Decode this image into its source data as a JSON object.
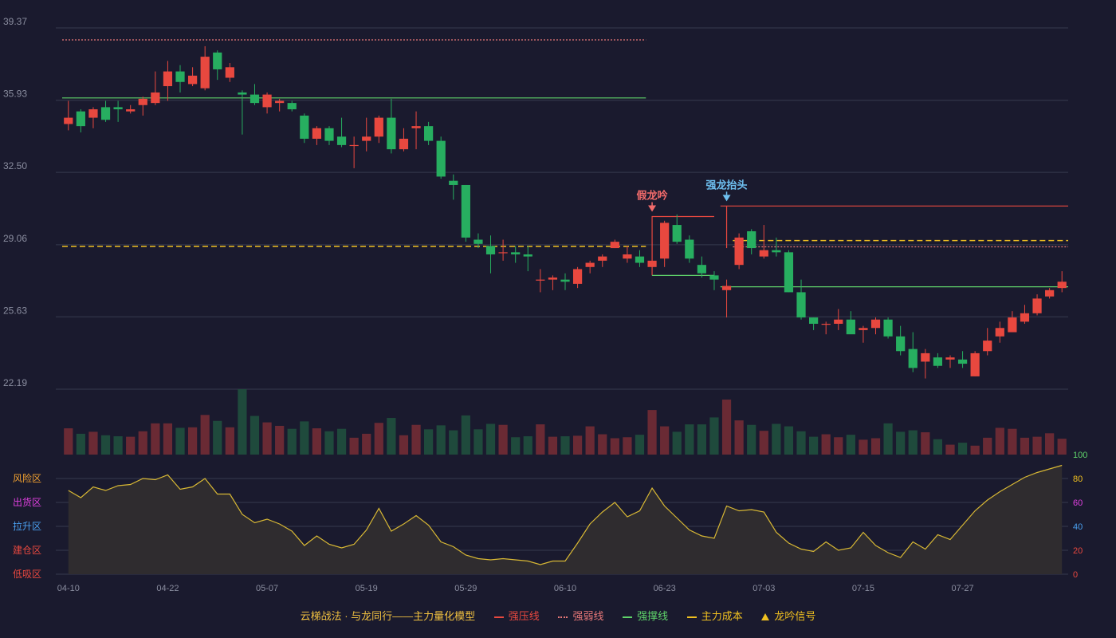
{
  "colors": {
    "background": "#1a1a2e",
    "grid": "#363a4f",
    "axis_label": "#8a8d9f",
    "up": "#e8483f",
    "down": "#27ae60",
    "vol_up": "#6a2a34",
    "vol_down": "#1f4a3c",
    "pressure": "#e8483f",
    "weak": "#e87878",
    "support": "#5fd36a",
    "cost": "#f0c020",
    "oscillator": "#d8b834",
    "oscillator_fill": "#2f2c2f",
    "fake_signal": "#f26b6b",
    "strong_signal": "#6ec0f0"
  },
  "chart_data": {
    "type": "candlestick",
    "price_axis": {
      "ticks": [
        "39.37",
        "35.93",
        "32.50",
        "29.06",
        "25.63",
        "22.19"
      ],
      "range": [
        22.19,
        39.37
      ]
    },
    "x_tick_labels": [
      {
        "index": 0,
        "label": "04-10"
      },
      {
        "index": 8,
        "label": "04-22"
      },
      {
        "index": 16,
        "label": "05-07"
      },
      {
        "index": 24,
        "label": "05-19"
      },
      {
        "index": 32,
        "label": "05-29"
      },
      {
        "index": 40,
        "label": "06-10"
      },
      {
        "index": 48,
        "label": "06-23"
      },
      {
        "index": 56,
        "label": "07-03"
      },
      {
        "index": 64,
        "label": "07-15"
      },
      {
        "index": 72,
        "label": "07-27"
      }
    ],
    "candles": [
      [
        34.8,
        35.1,
        35.9,
        34.5
      ],
      [
        35.4,
        34.7,
        35.5,
        34.4
      ],
      [
        35.1,
        35.5,
        35.6,
        34.6
      ],
      [
        35.6,
        35.0,
        35.9,
        34.9
      ],
      [
        35.6,
        35.5,
        35.9,
        34.9
      ],
      [
        35.4,
        35.5,
        35.7,
        35.3
      ],
      [
        35.7,
        36.0,
        36.1,
        35.2
      ],
      [
        35.8,
        36.3,
        37.3,
        35.7
      ],
      [
        36.6,
        37.3,
        37.8,
        35.9
      ],
      [
        37.3,
        36.8,
        37.6,
        36.3
      ],
      [
        36.7,
        37.1,
        37.5,
        36.6
      ],
      [
        36.5,
        38.0,
        38.5,
        36.4
      ],
      [
        38.2,
        37.4,
        38.3,
        36.9
      ],
      [
        37.0,
        37.5,
        37.7,
        36.8
      ],
      [
        36.3,
        36.2,
        36.4,
        34.3
      ],
      [
        36.2,
        35.8,
        36.7,
        35.7
      ],
      [
        35.6,
        36.2,
        36.3,
        35.3
      ],
      [
        35.8,
        35.9,
        36.0,
        35.4
      ],
      [
        35.8,
        35.5,
        35.9,
        35.4
      ],
      [
        35.2,
        34.1,
        35.3,
        33.9
      ],
      [
        34.1,
        34.6,
        34.7,
        33.8
      ],
      [
        34.6,
        34.0,
        34.7,
        33.8
      ],
      [
        34.2,
        33.8,
        35.1,
        33.7
      ],
      [
        33.8,
        33.8,
        34.2,
        32.7
      ],
      [
        34.0,
        34.2,
        35.1,
        33.5
      ],
      [
        34.2,
        35.1,
        35.2,
        33.9
      ],
      [
        35.1,
        33.6,
        36.0,
        33.4
      ],
      [
        33.6,
        34.1,
        34.6,
        33.5
      ],
      [
        34.6,
        34.7,
        35.4,
        33.6
      ],
      [
        34.7,
        34.0,
        34.9,
        33.8
      ],
      [
        34.0,
        32.3,
        34.2,
        32.2
      ],
      [
        32.1,
        31.9,
        32.4,
        31.2
      ],
      [
        31.9,
        29.4,
        31.9,
        29.2
      ],
      [
        29.3,
        29.1,
        29.6,
        28.9
      ],
      [
        29.0,
        28.6,
        29.5,
        27.7
      ],
      [
        28.7,
        28.7,
        29.3,
        28.3
      ],
      [
        28.7,
        28.6,
        29.0,
        28.2
      ],
      [
        28.6,
        28.5,
        29.0,
        27.8
      ],
      [
        27.4,
        27.4,
        27.9,
        26.8
      ],
      [
        27.4,
        27.5,
        27.6,
        26.9
      ],
      [
        27.4,
        27.3,
        27.7,
        26.9
      ],
      [
        27.2,
        27.9,
        28.0,
        27.0
      ],
      [
        28.0,
        28.2,
        28.3,
        27.7
      ],
      [
        28.3,
        28.5,
        28.6,
        28.0
      ],
      [
        28.9,
        29.2,
        29.3,
        28.9
      ],
      [
        28.4,
        28.6,
        29.0,
        28.2
      ],
      [
        28.5,
        28.2,
        28.8,
        28.0
      ],
      [
        28.0,
        28.3,
        29.2,
        27.9
      ],
      [
        28.4,
        30.1,
        30.2,
        28.0
      ],
      [
        30.0,
        29.2,
        30.5,
        29.1
      ],
      [
        29.3,
        28.4,
        29.5,
        28.2
      ],
      [
        28.1,
        27.7,
        28.5,
        27.5
      ],
      [
        27.6,
        27.4,
        27.8,
        26.9
      ],
      [
        26.9,
        27.1,
        27.4,
        25.6
      ],
      [
        28.1,
        29.4,
        29.6,
        27.9
      ],
      [
        29.7,
        28.9,
        29.8,
        28.6
      ],
      [
        28.5,
        28.8,
        30.0,
        28.4
      ],
      [
        28.8,
        28.7,
        29.4,
        28.5
      ],
      [
        28.7,
        26.8,
        28.8,
        26.8
      ],
      [
        26.8,
        25.6,
        27.4,
        25.5
      ],
      [
        25.6,
        25.3,
        25.6,
        25.0
      ],
      [
        25.3,
        25.3,
        25.4,
        24.8
      ],
      [
        25.3,
        25.5,
        26.0,
        25.0
      ],
      [
        25.5,
        24.8,
        25.9,
        24.9
      ],
      [
        25.0,
        25.1,
        25.2,
        24.4
      ],
      [
        25.1,
        25.5,
        25.6,
        24.8
      ],
      [
        25.5,
        24.7,
        25.6,
        24.6
      ],
      [
        24.7,
        24.0,
        25.2,
        23.8
      ],
      [
        24.1,
        23.2,
        24.9,
        23.0
      ],
      [
        23.5,
        23.9,
        24.1,
        22.7
      ],
      [
        23.7,
        23.3,
        23.9,
        23.2
      ],
      [
        23.6,
        23.7,
        23.8,
        23.2
      ],
      [
        23.6,
        23.4,
        24.0,
        23.2
      ],
      [
        22.8,
        23.9,
        24.0,
        22.8
      ],
      [
        24.0,
        24.5,
        25.1,
        23.8
      ],
      [
        24.7,
        25.1,
        25.4,
        24.4
      ],
      [
        24.9,
        25.6,
        25.9,
        24.9
      ],
      [
        25.4,
        25.8,
        26.2,
        25.3
      ],
      [
        25.8,
        26.5,
        26.7,
        25.7
      ],
      [
        26.6,
        26.9,
        27.0,
        26.5
      ],
      [
        27.0,
        27.3,
        27.8,
        26.8
      ]
    ],
    "volumes": [
      53,
      42,
      46,
      39,
      37,
      36,
      47,
      63,
      63,
      54,
      55,
      80,
      68,
      55,
      132,
      78,
      65,
      58,
      52,
      67,
      53,
      47,
      52,
      34,
      42,
      64,
      74,
      39,
      60,
      51,
      59,
      49,
      79,
      51,
      62,
      60,
      35,
      37,
      61,
      36,
      37,
      38,
      57,
      41,
      33,
      35,
      40,
      90,
      57,
      46,
      61,
      61,
      75,
      111,
      69,
      60,
      48,
      62,
      57,
      47,
      36,
      41,
      35,
      40,
      30,
      33,
      63,
      46,
      49,
      45,
      31,
      20,
      24,
      18,
      34,
      54,
      52,
      34,
      36,
      43,
      32
    ],
    "oscillator": {
      "axis_ticks": [
        "0",
        "20",
        "40",
        "60",
        "80",
        "100"
      ],
      "zone_labels": [
        "风险区",
        "出货区",
        "拉升区",
        "建仓区",
        "低吸区"
      ],
      "values": [
        70,
        64,
        73,
        70,
        74,
        75,
        80,
        79,
        83,
        71,
        73,
        80,
        67,
        67,
        50,
        43,
        46,
        42,
        36,
        24,
        32,
        25,
        22,
        25,
        37,
        55,
        36,
        42,
        49,
        41,
        27,
        23,
        16,
        13,
        12,
        13,
        12,
        11,
        8,
        11,
        11,
        26,
        42,
        52,
        60,
        48,
        53,
        72,
        57,
        47,
        37,
        32,
        30,
        57,
        53,
        54,
        52,
        35,
        26,
        21,
        19,
        27,
        20,
        22,
        35,
        24,
        18,
        14,
        27,
        21,
        33,
        29,
        41,
        53,
        62,
        69,
        75,
        81,
        85,
        88,
        91
      ],
      "range": [
        0,
        100
      ]
    },
    "lines": {
      "weak_line": {
        "value": 38.8,
        "from": 0,
        "to": 46
      },
      "support_line_1": {
        "value": 36.04,
        "from": 0,
        "to": 46
      },
      "cost_line_1": {
        "value": 28.98,
        "from": 0,
        "to": 46
      },
      "pressure_line_2": {
        "value": 30.9,
        "from": 53,
        "to": 80
      },
      "cost_line_2": {
        "value": 29.26,
        "from": 54,
        "to": 80
      },
      "weak_line_2": {
        "value": 28.96,
        "from": 54,
        "to": 80
      },
      "support_line_2": {
        "value": 27.06,
        "from": 53,
        "to": 80
      },
      "fake_box": {
        "top": 30.4,
        "bottom": 27.6,
        "from": 47,
        "to": 52
      }
    },
    "signals": [
      {
        "index": 47,
        "label": "假龙吟",
        "type": "fake",
        "price": 30.4
      },
      {
        "index": 53,
        "label": "强龙抬头",
        "type": "strong",
        "price": 30.9
      }
    ]
  },
  "legend": {
    "title": "云梯战法 · 与龙同行——主力量化模型",
    "items": [
      {
        "label": "强压线",
        "color": "#e8483f",
        "style": "solid"
      },
      {
        "label": "强弱线",
        "color": "#e87878",
        "style": "dotted"
      },
      {
        "label": "强撑线",
        "color": "#5fd36a",
        "style": "solid"
      },
      {
        "label": "主力成本",
        "color": "#f0c020",
        "style": "dashed"
      },
      {
        "label": "龙吟信号",
        "color": "#f0c020",
        "style": "triangle"
      }
    ]
  }
}
